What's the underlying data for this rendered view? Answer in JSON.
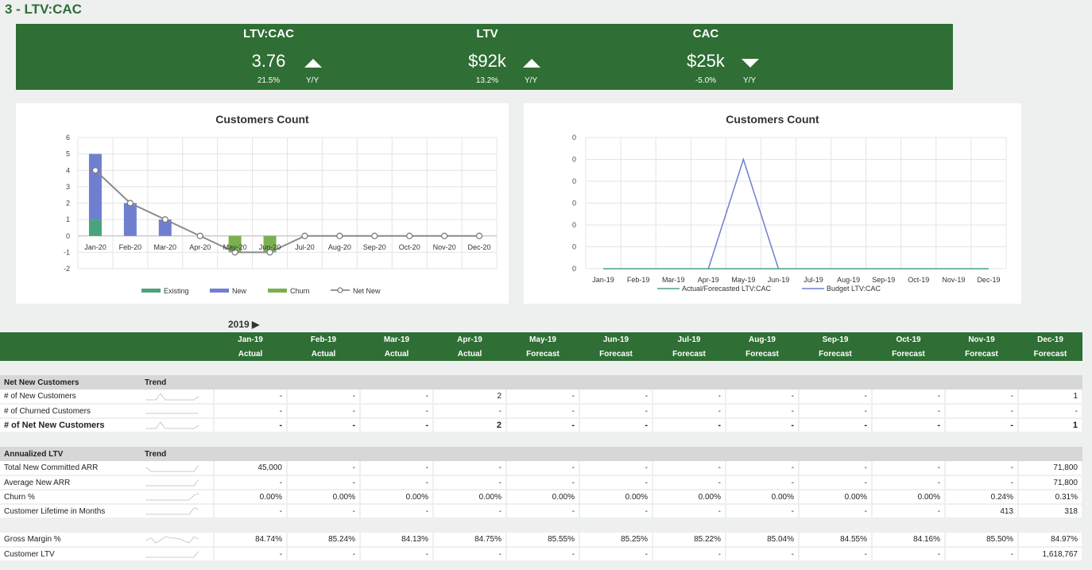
{
  "page_title": "3 - LTV:CAC",
  "kpis": [
    {
      "label": "LTV:CAC",
      "value": "3.76",
      "direction": "up",
      "pct": "21.5%",
      "yy": "Y/Y"
    },
    {
      "label": "LTV",
      "value": "$92k",
      "direction": "up",
      "pct": "13.2%",
      "yy": "Y/Y"
    },
    {
      "label": "CAC",
      "value": "$25k",
      "direction": "down",
      "pct": "-5.0%",
      "yy": "Y/Y"
    }
  ],
  "colors": {
    "brand_green": "#2f6e34",
    "existing": "#4aa37c",
    "new": "#6f7fd0",
    "churn": "#7ab04f",
    "net_new": "#8a8a8a",
    "budget": "#6f7fd0",
    "actual": "#4aa37c"
  },
  "chart_data": [
    {
      "type": "bar",
      "title": "Customers Count",
      "categories": [
        "Jan-20",
        "Feb-20",
        "Mar-20",
        "Apr-20",
        "May-20",
        "Jun-20",
        "Jul-20",
        "Aug-20",
        "Sep-20",
        "Oct-20",
        "Nov-20",
        "Dec-20"
      ],
      "ylim": [
        -2,
        6
      ],
      "yticks": [
        "6",
        "5",
        "4",
        "3",
        "2",
        "1",
        "0",
        "-1",
        "-2"
      ],
      "series": [
        {
          "name": "Existing",
          "kind": "bar",
          "values": [
            1,
            0,
            0,
            0,
            0,
            0,
            0,
            0,
            0,
            0,
            0,
            0
          ]
        },
        {
          "name": "New",
          "kind": "bar",
          "values": [
            4,
            2,
            1,
            0,
            0,
            0,
            0,
            0,
            0,
            0,
            0,
            0
          ]
        },
        {
          "name": "Churn",
          "kind": "bar",
          "values": [
            0,
            0,
            0,
            0,
            -1,
            -1,
            0,
            0,
            0,
            0,
            0,
            0
          ]
        },
        {
          "name": "Net New",
          "kind": "line",
          "values": [
            4,
            2,
            1,
            0,
            -1,
            -1,
            0,
            0,
            0,
            0,
            0,
            0
          ]
        }
      ],
      "legend": "bottom"
    },
    {
      "type": "line",
      "title": "Customers Count",
      "categories": [
        "Jan-19",
        "Feb-19",
        "Mar-19",
        "Apr-19",
        "May-19",
        "Jun-19",
        "Jul-19",
        "Aug-19",
        "Sep-19",
        "Oct-19",
        "Nov-19",
        "Dec-19"
      ],
      "yticks": [
        "0",
        "0",
        "0",
        "0",
        "0",
        "0",
        "0"
      ],
      "ylim": [
        0,
        6
      ],
      "series": [
        {
          "name": "Actual/Forecasted LTV:CAC",
          "values": [
            0,
            0,
            0,
            0,
            0,
            0,
            0,
            0,
            0,
            0,
            0,
            0
          ]
        },
        {
          "name": "Budget LTV:CAC",
          "values": [
            null,
            null,
            null,
            0,
            5,
            0,
            null,
            null,
            null,
            null,
            null,
            null
          ]
        }
      ],
      "legend": "bottom"
    }
  ],
  "table": {
    "year_label": "2019 ▶",
    "months": [
      "Jan-19",
      "Feb-19",
      "Mar-19",
      "Apr-19",
      "May-19",
      "Jun-19",
      "Jul-19",
      "Aug-19",
      "Sep-19",
      "Oct-19",
      "Nov-19",
      "Dec-19"
    ],
    "types": [
      "Actual",
      "Actual",
      "Actual",
      "Actual",
      "Forecast",
      "Forecast",
      "Forecast",
      "Forecast",
      "Forecast",
      "Forecast",
      "Forecast",
      "Forecast"
    ],
    "sections": [
      {
        "title": "Net New Customers",
        "trend_label": "Trend",
        "rows": [
          {
            "label": "# of New Customers",
            "bold": false,
            "values": [
              "-",
              "-",
              "-",
              "2",
              "-",
              "-",
              "-",
              "-",
              "-",
              "-",
              "-",
              "1"
            ]
          },
          {
            "label": "# of Churned Customers",
            "bold": false,
            "values": [
              "-",
              "-",
              "-",
              "-",
              "-",
              "-",
              "-",
              "-",
              "-",
              "-",
              "-",
              "-"
            ]
          },
          {
            "label": "# of Net New Customers",
            "bold": true,
            "values": [
              "-",
              "-",
              "-",
              "2",
              "-",
              "-",
              "-",
              "-",
              "-",
              "-",
              "-",
              "1"
            ]
          }
        ]
      },
      {
        "title": "Annualized LTV",
        "trend_label": "Trend",
        "rows": [
          {
            "label": "Total New Committed ARR",
            "bold": false,
            "values": [
              "45,000",
              "-",
              "-",
              "-",
              "-",
              "-",
              "-",
              "-",
              "-",
              "-",
              "-",
              "71,800"
            ]
          },
          {
            "label": "Average New ARR",
            "bold": false,
            "values": [
              "-",
              "-",
              "-",
              "-",
              "-",
              "-",
              "-",
              "-",
              "-",
              "-",
              "-",
              "71,800"
            ]
          },
          {
            "label": "Churn %",
            "bold": false,
            "values": [
              "0.00%",
              "0.00%",
              "0.00%",
              "0.00%",
              "0.00%",
              "0.00%",
              "0.00%",
              "0.00%",
              "0.00%",
              "0.00%",
              "0.24%",
              "0.31%"
            ]
          },
          {
            "label": "Customer Lifetime in Months",
            "bold": false,
            "values": [
              "-",
              "-",
              "-",
              "-",
              "-",
              "-",
              "-",
              "-",
              "-",
              "-",
              "413",
              "318"
            ]
          }
        ]
      },
      {
        "title": "",
        "trend_label": "",
        "rows": [
          {
            "label": "Gross Margin %",
            "bold": false,
            "values": [
              "84.74%",
              "85.24%",
              "84.13%",
              "84.75%",
              "85.55%",
              "85.25%",
              "85.22%",
              "85.04%",
              "84.55%",
              "84.16%",
              "85.50%",
              "84.97%"
            ]
          },
          {
            "label": "Customer LTV",
            "bold": false,
            "values": [
              "-",
              "-",
              "-",
              "-",
              "-",
              "-",
              "-",
              "-",
              "-",
              "-",
              "-",
              "1,618,767"
            ]
          }
        ]
      }
    ]
  }
}
